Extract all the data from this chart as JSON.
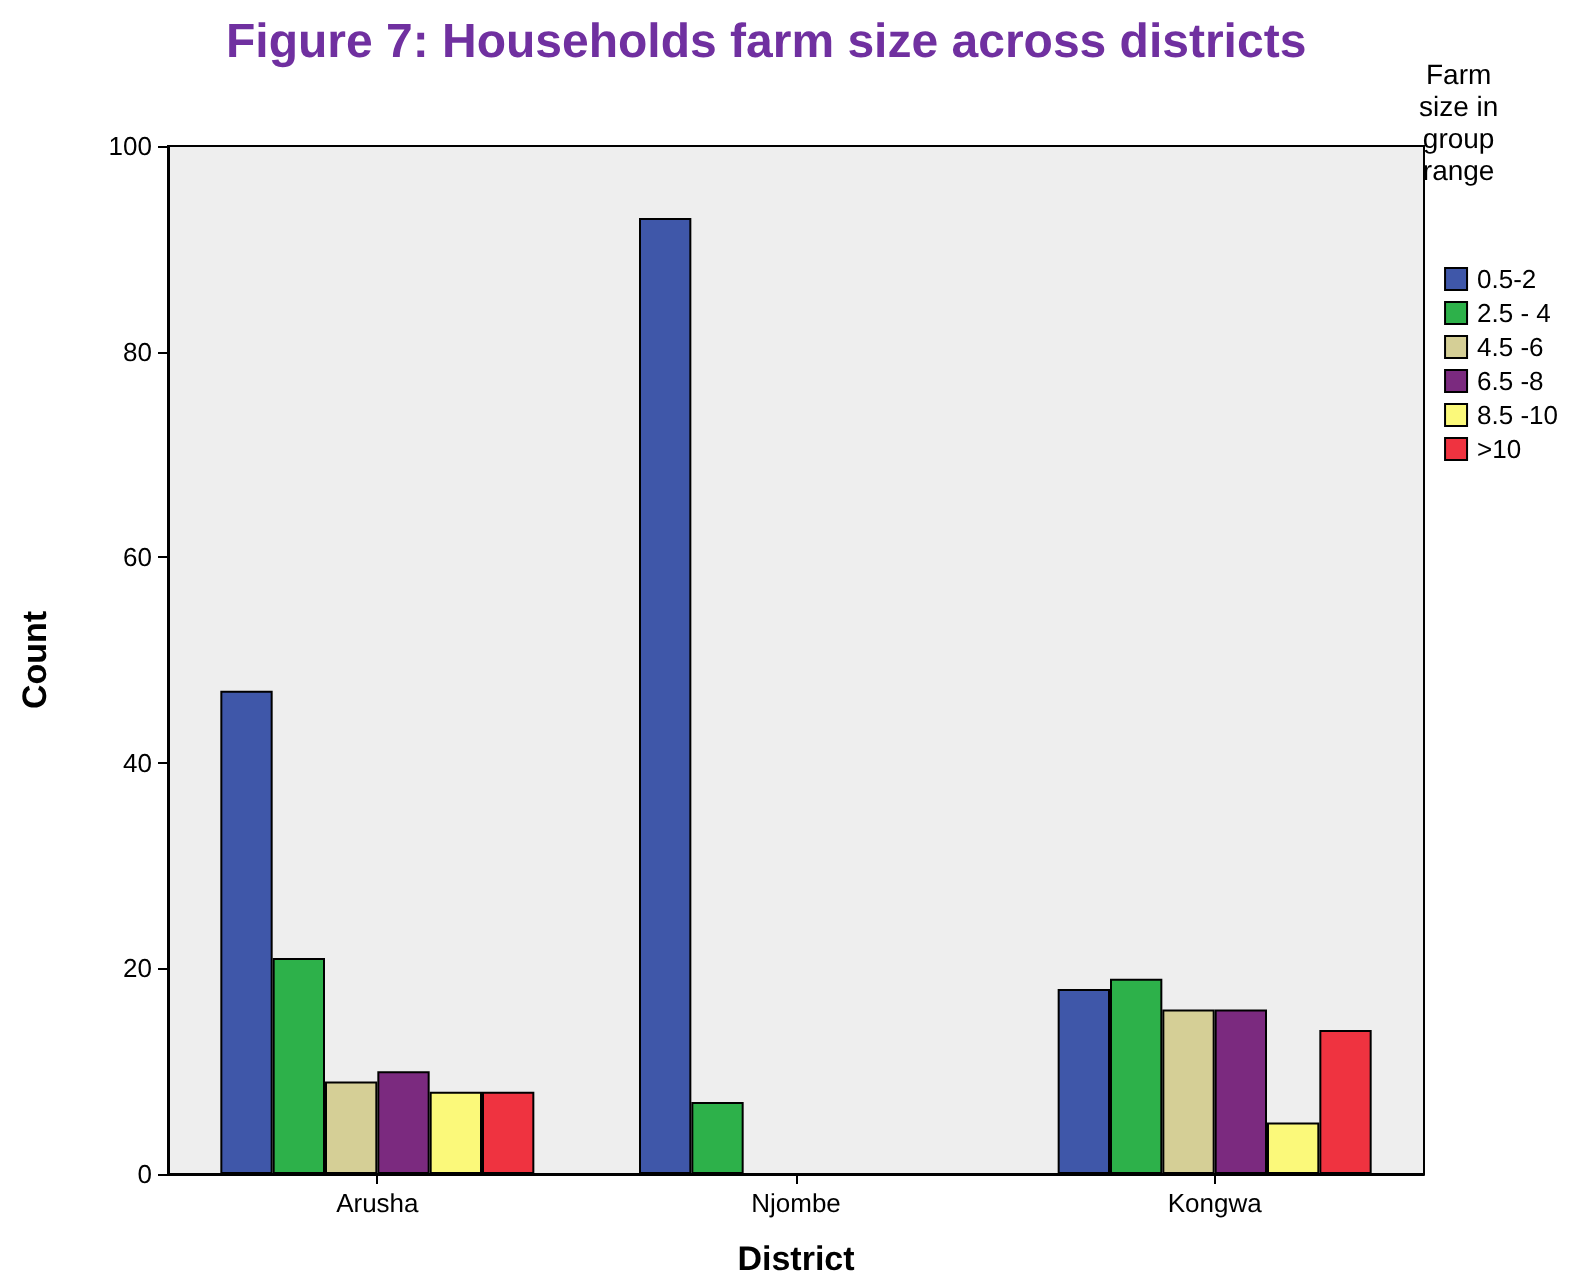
{
  "chart_data": {
    "type": "bar",
    "title": "Figure 7: Households farm size across districts",
    "xlabel": "District",
    "ylabel": "Count",
    "legend_title": "Farm\nsize in\ngroup\nrange",
    "categories": [
      "Arusha",
      "Njombe",
      "Kongwa"
    ],
    "series": [
      {
        "name": "0.5-2",
        "color": "#3f57a9",
        "values": [
          47,
          93,
          18
        ]
      },
      {
        "name": "2.5 - 4",
        "color": "#2db14a",
        "values": [
          21,
          7,
          19
        ]
      },
      {
        "name": "4.5 -6",
        "color": "#d5cf96",
        "values": [
          9,
          null,
          16
        ]
      },
      {
        "name": "6.5 -8",
        "color": "#7b2a7f",
        "values": [
          10,
          null,
          16
        ]
      },
      {
        "name": "8.5 -10",
        "color": "#fbf97a",
        "values": [
          8,
          null,
          5
        ]
      },
      {
        "name": ">10",
        "color": "#ef3340",
        "values": [
          8,
          null,
          14
        ]
      }
    ],
    "ylim": [
      0,
      100
    ],
    "yticks": [
      0,
      20,
      40,
      60,
      80,
      100
    ],
    "grid": false,
    "legend": "top right"
  }
}
